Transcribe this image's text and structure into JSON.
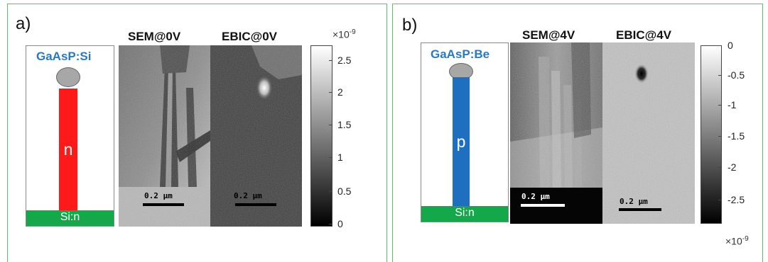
{
  "panel_a": {
    "label": "a)",
    "schematic": {
      "material": "GaAsP:Si",
      "nanowire_type": "n",
      "substrate": "Si:n",
      "nanowire_color": "#ff1a1a"
    },
    "sem_title": "SEM@0V",
    "ebic_title": "EBIC@0V",
    "sem_scalebar": "0.2 µm",
    "ebic_scalebar": "0.2 µm",
    "colorbar": {
      "exponent_base": "×10",
      "exponent_power": "-9",
      "ticks": [
        "2.5",
        "2",
        "1.5",
        "1",
        "0.5",
        "0"
      ]
    }
  },
  "panel_b": {
    "label": "b)",
    "schematic": {
      "material": "GaAsP:Be",
      "nanowire_type": "p",
      "substrate": "Si:n",
      "nanowire_color": "#1f6fc1"
    },
    "sem_title": "SEM@4V",
    "ebic_title": "EBIC@4V",
    "sem_scalebar": "0.2 µm",
    "ebic_scalebar": "0.2 µm",
    "colorbar": {
      "exponent_base": "×10",
      "exponent_power": "-9",
      "ticks": [
        "0",
        "-0.5",
        "-1",
        "-1.5",
        "-2",
        "-2.5"
      ]
    }
  },
  "colors": {
    "frame": "#5cbf6b",
    "substrate": "#14a84b",
    "material_label": "#2a78bf"
  }
}
